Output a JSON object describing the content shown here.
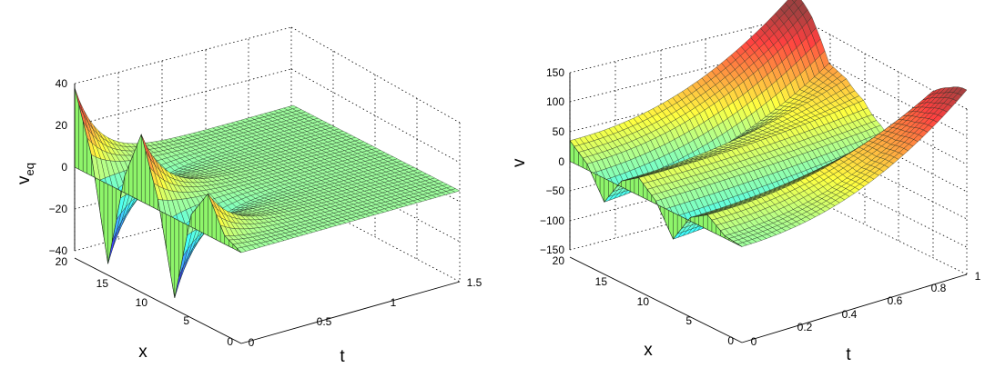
{
  "figure": {
    "panels": 2
  },
  "chart_data": [
    {
      "type": "surface",
      "title": "",
      "xlabel": "t",
      "ylabel": "x",
      "zlabel": "v",
      "zlabel_sub": "eq",
      "xlim": [
        0,
        1.5
      ],
      "ylim": [
        0,
        20
      ],
      "zlim": [
        -40,
        40
      ],
      "xticks": [
        "0",
        "0.5",
        "1",
        "1.5"
      ],
      "yticks": [
        "0",
        "5",
        "10",
        "15",
        "20"
      ],
      "zticks": [
        "40",
        "20",
        "0",
        "−20",
        "−40"
      ],
      "grid": true,
      "colormap": "jet",
      "description_of_initial_profile": "v_eq(x,0) oscillates between about -38 and 38 (peaks near x=20, x=12; troughs near x=16, x=8) and decays to ~0 as t increases",
      "initial_profile": {
        "x": [
          20,
          18,
          16,
          14,
          12,
          10,
          8,
          6,
          4,
          2,
          0
        ],
        "v": [
          38,
          10,
          -38,
          8,
          32,
          5,
          -38,
          6,
          20,
          4,
          0
        ]
      },
      "decay_rate": 6
    },
    {
      "type": "surface",
      "title": "",
      "xlabel": "t",
      "ylabel": "x",
      "zlabel": "v",
      "xlim": [
        0,
        1
      ],
      "ylim": [
        0,
        20
      ],
      "zlim": [
        -150,
        150
      ],
      "xticks": [
        "0",
        "0.2",
        "0.4",
        "0.6",
        "0.8",
        "1"
      ],
      "yticks": [
        "0",
        "5",
        "10",
        "15",
        "20"
      ],
      "zticks": [
        "150",
        "100",
        "50",
        "0",
        "−50",
        "−100",
        "−150"
      ],
      "grid": true,
      "colormap": "jet",
      "description_of_initial_profile": "v(x,0) oscillates with amplitude ~40-60 and grows to about 150 at t=1",
      "initial_profile": {
        "x": [
          20,
          18,
          16,
          14,
          12,
          10,
          8,
          6,
          4,
          2,
          0
        ],
        "v": [
          35,
          10,
          -40,
          10,
          30,
          5,
          -45,
          6,
          25,
          4,
          0
        ]
      },
      "growth_at_t_end": 150
    }
  ]
}
